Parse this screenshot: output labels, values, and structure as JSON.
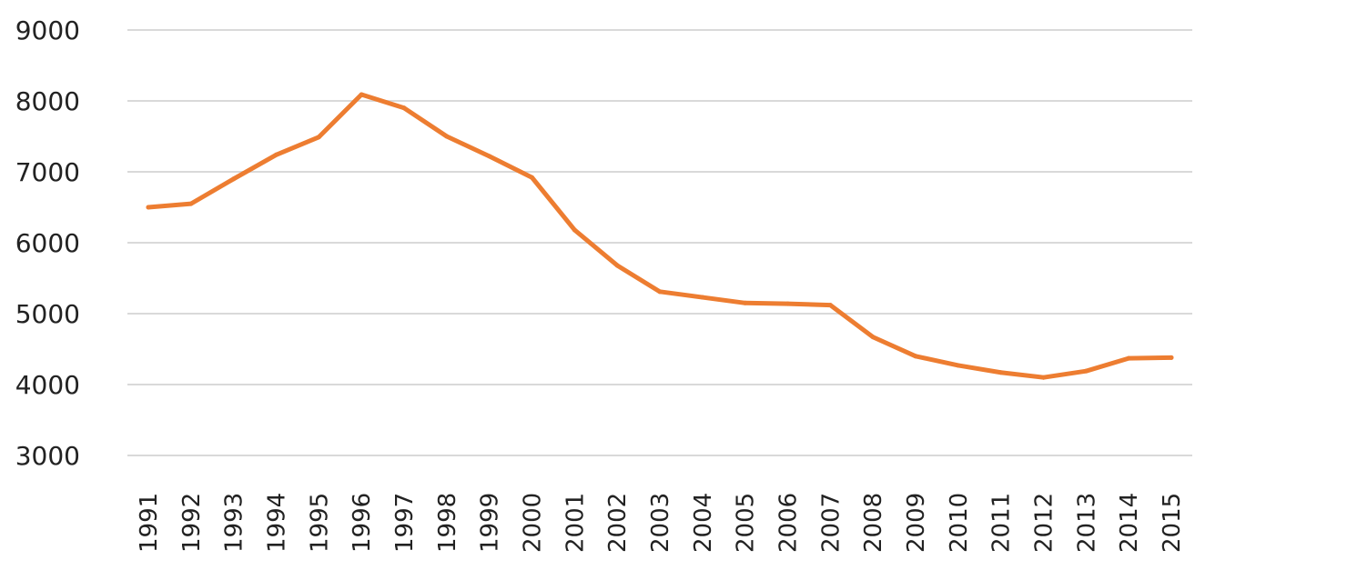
{
  "chart_data": {
    "type": "line",
    "title": "",
    "xlabel": "",
    "ylabel": "",
    "ylim": [
      3000,
      9000
    ],
    "yticks": [
      3000,
      4000,
      5000,
      6000,
      7000,
      8000,
      9000
    ],
    "grid": true,
    "legend": "none",
    "categories": [
      "1991",
      "1992",
      "1993",
      "1994",
      "1995",
      "1996",
      "1997",
      "1998",
      "1999",
      "2000",
      "2001",
      "2002",
      "2003",
      "2004",
      "2005",
      "2006",
      "2007",
      "2008",
      "2009",
      "2010",
      "2011",
      "2012",
      "2013",
      "2014",
      "2015"
    ],
    "series": [
      {
        "color": "#ED7D31",
        "values": [
          6500,
          6550,
          6900,
          7240,
          7490,
          8090,
          7900,
          7500,
          7220,
          6920,
          6180,
          5680,
          5310,
          5230,
          5150,
          5140,
          5120,
          4670,
          4400,
          4270,
          4170,
          4100,
          4190,
          4370,
          4380
        ]
      }
    ]
  }
}
